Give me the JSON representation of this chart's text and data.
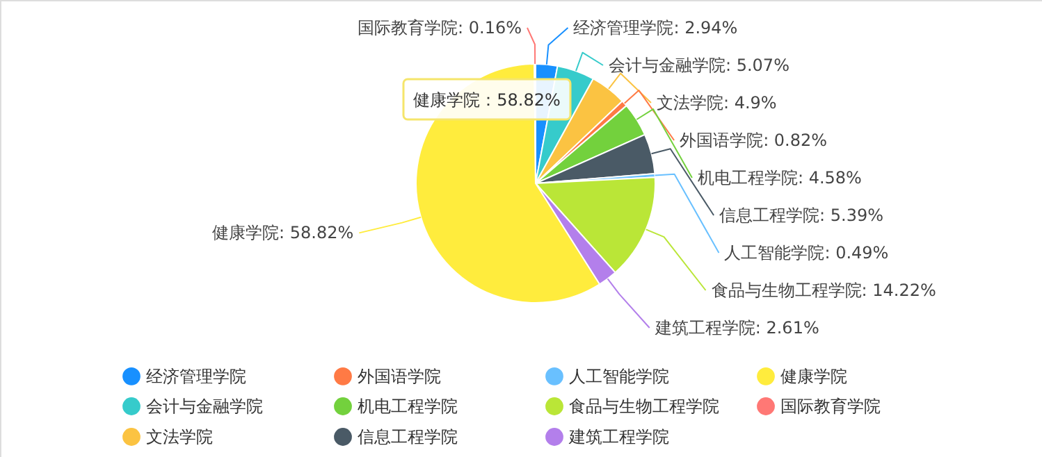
{
  "chart_data": {
    "type": "pie",
    "categories": [
      "经济管理学院",
      "会计与金融学院",
      "文法学院",
      "外国语学院",
      "机电工程学院",
      "信息工程学院",
      "人工智能学院",
      "食品与生物工程学院",
      "建筑工程学院",
      "健康学院",
      "国际教育学院"
    ],
    "values": [
      2.94,
      5.07,
      4.9,
      0.82,
      4.58,
      5.39,
      0.49,
      14.22,
      2.61,
      58.82,
      0.16
    ],
    "colors": [
      "#1890ff",
      "#36cbcb",
      "#fbc342",
      "#ff7a45",
      "#73d13d",
      "#4a5a66",
      "#69c0ff",
      "#bae637",
      "#b37feb",
      "#ffec3d",
      "#ff7875"
    ],
    "value_labels": [
      "经济管理学院: 2.94%",
      "会计与金融学院: 5.07%",
      "文法学院: 4.9%",
      "外国语学院: 0.82%",
      "机电工程学院: 4.58%",
      "信息工程学院: 5.39%",
      "人工智能学院: 0.49%",
      "食品与生物工程学院: 14.22%",
      "建筑工程学院: 2.61%",
      "健康学院: 58.82%",
      "国际教育学院: 0.16%"
    ],
    "annotations": [
      "健康学院：58.82%"
    ],
    "legend": "bottom"
  }
}
